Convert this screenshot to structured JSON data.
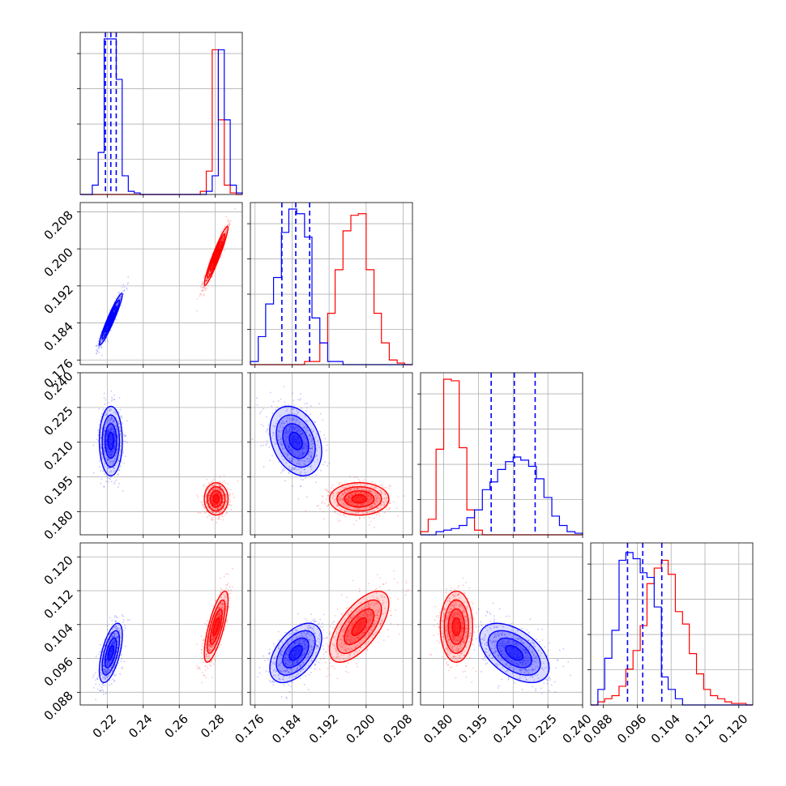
{
  "chart_data": {
    "type": "corner",
    "grid": true,
    "colors": {
      "series_a": "#0000ff",
      "series_b": "#ff0000"
    },
    "series": [
      {
        "color": "#0000ff",
        "means": [
          0.222,
          0.1848,
          0.2105,
          0.0973
        ],
        "sds": [
          0.0032,
          0.0028,
          0.0075,
          0.0035
        ],
        "corr": {
          "1-0": 0.95,
          "2-0": 0.0,
          "2-1": -0.3,
          "3-0": 0.6,
          "3-1": 0.5,
          "3-2": -0.5
        },
        "quantiles": [
          [
            0.219,
            0.222,
            0.225
          ],
          [
            0.1818,
            0.1848,
            0.1878
          ],
          [
            0.2005,
            0.2105,
            0.2195
          ],
          [
            0.0937,
            0.0973,
            0.1018
          ]
        ]
      },
      {
        "color": "#ff0000",
        "means": [
          0.2805,
          0.1985,
          0.1855,
          0.1035
        ],
        "sds": [
          0.0033,
          0.0032,
          0.0035,
          0.0042
        ],
        "corr": {
          "1-0": 0.95,
          "2-0": 0.0,
          "2-1": 0.0,
          "3-0": 0.75,
          "3-1": 0.65,
          "3-2": 0.0
        }
      }
    ],
    "hist_1d": [
      {
        "bin_edges": [
          0.205,
          0.2083,
          0.2117,
          0.215,
          0.2183,
          0.2217,
          0.225,
          0.2283,
          0.2317,
          0.235,
          0.2383,
          0.2417,
          0.245,
          0.2483,
          0.2517,
          0.255,
          0.2583,
          0.2617,
          0.265,
          0.2683,
          0.2717,
          0.275,
          0.2783,
          0.2817,
          0.285,
          0.2883,
          0.2917,
          0.295
        ],
        "blue": [
          0,
          0,
          0.06,
          0.27,
          1.0,
          1.0,
          0.74,
          0.12,
          0.02,
          0.01,
          0,
          0,
          0,
          0,
          0,
          0,
          0,
          0,
          0,
          0,
          0,
          0.02,
          0.12,
          0.93,
          0.48,
          0.06,
          0.01
        ],
        "red": [
          0,
          0,
          0,
          0,
          0,
          0,
          0,
          0,
          0,
          0,
          0,
          0,
          0,
          0,
          0,
          0,
          0,
          0,
          0,
          0,
          0.02,
          0.15,
          0.93,
          0.48,
          0.06,
          0.01,
          0
        ]
      },
      {
        "bin_edges": [
          0.175,
          0.1767,
          0.1783,
          0.18,
          0.1817,
          0.1833,
          0.185,
          0.1867,
          0.1883,
          0.19,
          0.1917,
          0.1933,
          0.195,
          0.1967,
          0.1983,
          0.2,
          0.2017,
          0.2033,
          0.205,
          0.2067,
          0.2083,
          0.21
        ],
        "blue": [
          0.02,
          0.18,
          0.39,
          0.56,
          0.85,
          1.0,
          0.97,
          0.82,
          0.3,
          0.14,
          0.02,
          0.02,
          0,
          0,
          0,
          0,
          0,
          0,
          0,
          0,
          0
        ],
        "red": [
          0,
          0,
          0,
          0,
          0,
          0,
          0,
          0.02,
          0.02,
          0.14,
          0.33,
          0.61,
          0.86,
          0.96,
          0.97,
          0.61,
          0.33,
          0.14,
          0.03,
          0.01,
          0
        ]
      },
      {
        "bin_edges": [
          0.17,
          0.1733,
          0.1767,
          0.18,
          0.1833,
          0.1867,
          0.19,
          0.1933,
          0.1967,
          0.2,
          0.2033,
          0.2067,
          0.21,
          0.2133,
          0.2167,
          0.22,
          0.2233,
          0.2267,
          0.23,
          0.2333,
          0.2367,
          0.24
        ],
        "blue": [
          0,
          0,
          0.02,
          0.03,
          0.04,
          0.06,
          0.11,
          0.16,
          0.29,
          0.34,
          0.42,
          0.47,
          0.5,
          0.48,
          0.44,
          0.36,
          0.24,
          0.12,
          0.06,
          0.02,
          0.01
        ],
        "red": [
          0.02,
          0.1,
          0.55,
          1.0,
          0.99,
          0.56,
          0.16,
          0.03,
          0,
          0,
          0,
          0,
          0,
          0,
          0,
          0,
          0,
          0,
          0,
          0,
          0
        ]
      },
      {
        "bin_edges": [
          0.085,
          0.0867,
          0.0883,
          0.09,
          0.0917,
          0.0933,
          0.095,
          0.0967,
          0.0983,
          0.1,
          0.1017,
          0.1033,
          0.105,
          0.1067,
          0.1083,
          0.11,
          0.1117,
          0.1133,
          0.115,
          0.1167,
          0.1183,
          0.12,
          0.1217,
          0.1233
        ],
        "blue": [
          0,
          0.1,
          0.3,
          0.48,
          0.93,
          0.98,
          0.94,
          0.85,
          0.82,
          0.63,
          0.18,
          0.1,
          0.04,
          0,
          0,
          0,
          0,
          0,
          0,
          0,
          0,
          0,
          0
        ],
        "red": [
          0,
          0.02,
          0.04,
          0.06,
          0.12,
          0.23,
          0.35,
          0.51,
          0.78,
          0.88,
          0.93,
          0.84,
          0.6,
          0.52,
          0.33,
          0.2,
          0.1,
          0.06,
          0.04,
          0.02,
          0.01,
          0.01,
          0
        ]
      }
    ],
    "axes": [
      {
        "range": [
          0.205,
          0.295
        ],
        "ticks": [
          "0.22",
          "0.24",
          "0.26",
          "0.28"
        ],
        "tick_values": [
          0.22,
          0.24,
          0.26,
          0.28
        ]
      },
      {
        "range": [
          0.175,
          0.21
        ],
        "ticks": [
          "0.176",
          "0.184",
          "0.192",
          "0.200",
          "0.208"
        ],
        "tick_values": [
          0.176,
          0.184,
          0.192,
          0.2,
          0.208
        ]
      },
      {
        "range": [
          0.17,
          0.24
        ],
        "ticks": [
          "0.180",
          "0.195",
          "0.210",
          "0.225",
          "0.240"
        ],
        "tick_values": [
          0.18,
          0.195,
          0.21,
          0.225,
          0.24
        ]
      },
      {
        "range": [
          0.085,
          0.1233
        ],
        "ticks": [
          "0.088",
          "0.096",
          "0.104",
          "0.112",
          "0.120"
        ],
        "tick_values": [
          0.088,
          0.096,
          0.104,
          0.112,
          0.12
        ]
      }
    ]
  }
}
